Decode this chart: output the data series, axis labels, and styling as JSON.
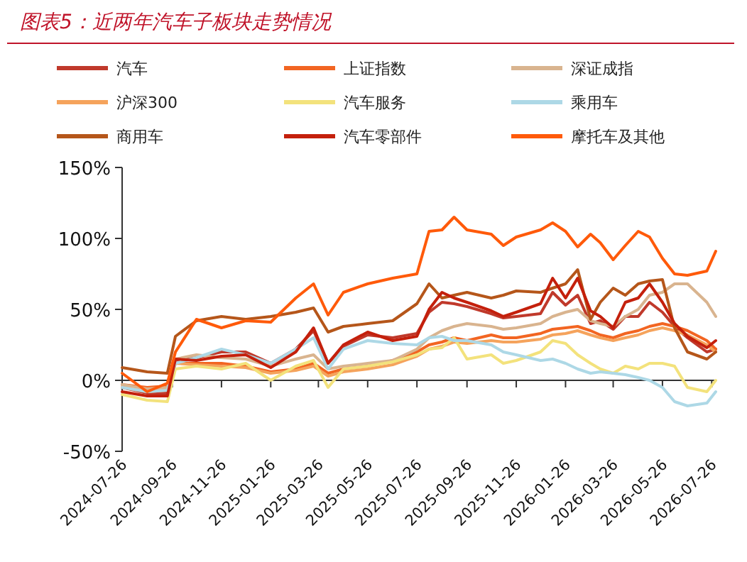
{
  "chart_data": {
    "type": "line",
    "title": "图表5：近两年汽车子板块走势情况",
    "x": [
      "2024-07-26",
      "2024-08-26",
      "2024-09-20",
      "2024-09-30",
      "2024-10-26",
      "2024-11-26",
      "2024-12-26",
      "2025-01-26",
      "2025-02-26",
      "2025-03-20",
      "2025-04-07",
      "2025-04-26",
      "2025-05-26",
      "2025-06-26",
      "2025-07-26",
      "2025-08-10",
      "2025-08-26",
      "2025-09-10",
      "2025-09-26",
      "2025-10-26",
      "2025-11-10",
      "2025-11-26",
      "2025-12-26",
      "2026-01-10",
      "2026-01-26",
      "2026-02-10",
      "2026-02-26",
      "2026-03-10",
      "2026-03-26",
      "2026-04-10",
      "2026-04-26",
      "2026-05-10",
      "2026-05-26",
      "2026-06-10",
      "2026-06-26",
      "2026-07-20",
      "2026-07-31"
    ],
    "series": [
      {
        "name": "汽车",
        "color": "#c0392b",
        "values": [
          -5,
          -9,
          -9,
          14,
          16,
          20,
          20,
          12,
          22,
          35,
          12,
          24,
          32,
          30,
          33,
          48,
          55,
          54,
          52,
          47,
          44,
          45,
          47,
          62,
          53,
          60,
          40,
          42,
          36,
          45,
          45,
          55,
          48,
          38,
          30,
          20,
          22
        ]
      },
      {
        "name": "上证指数",
        "color": "#f26522",
        "values": [
          -3,
          -5,
          -4,
          12,
          12,
          12,
          10,
          6,
          8,
          12,
          5,
          8,
          10,
          14,
          20,
          25,
          27,
          30,
          28,
          32,
          30,
          30,
          33,
          36,
          37,
          38,
          35,
          32,
          30,
          33,
          35,
          38,
          40,
          38,
          35,
          28,
          22
        ]
      },
      {
        "name": "深证成指",
        "color": "#d9b48f",
        "values": [
          -3,
          -6,
          -5,
          15,
          18,
          16,
          15,
          10,
          15,
          18,
          8,
          10,
          12,
          14,
          22,
          30,
          35,
          38,
          40,
          38,
          36,
          37,
          40,
          45,
          48,
          50,
          42,
          40,
          38,
          45,
          50,
          60,
          62,
          68,
          68,
          55,
          45
        ]
      },
      {
        "name": "沪深300",
        "color": "#f5a35c",
        "values": [
          -5,
          -8,
          -7,
          12,
          11,
          10,
          9,
          5,
          7,
          10,
          3,
          6,
          8,
          11,
          17,
          22,
          24,
          27,
          26,
          28,
          27,
          27,
          29,
          32,
          33,
          35,
          32,
          30,
          28,
          30,
          32,
          35,
          37,
          35,
          32,
          25,
          20
        ]
      },
      {
        "name": "汽车服务",
        "color": "#f3e27c",
        "values": [
          -10,
          -14,
          -15,
          8,
          10,
          8,
          12,
          0,
          10,
          14,
          -5,
          8,
          10,
          13,
          18,
          22,
          23,
          30,
          15,
          18,
          12,
          14,
          20,
          28,
          26,
          18,
          12,
          8,
          5,
          10,
          8,
          12,
          12,
          10,
          -5,
          -8,
          0
        ]
      },
      {
        "name": "乘用车",
        "color": "#add8e6",
        "values": [
          -5,
          -8,
          -7,
          12,
          16,
          22,
          18,
          12,
          22,
          30,
          8,
          22,
          28,
          26,
          25,
          30,
          31,
          28,
          28,
          25,
          20,
          18,
          14,
          15,
          12,
          8,
          5,
          6,
          5,
          4,
          2,
          0,
          -5,
          -15,
          -18,
          -16,
          -8
        ]
      },
      {
        "name": "商用车",
        "color": "#b5561a",
        "values": [
          9,
          6,
          5,
          31,
          42,
          45,
          43,
          45,
          48,
          51,
          34,
          38,
          40,
          42,
          54,
          68,
          58,
          60,
          62,
          58,
          60,
          63,
          62,
          65,
          68,
          78,
          43,
          55,
          65,
          60,
          68,
          70,
          71,
          37,
          20,
          15,
          20
        ]
      },
      {
        "name": "汽车零部件",
        "color": "#c4200c",
        "values": [
          -8,
          -11,
          -11,
          15,
          14,
          17,
          18,
          9,
          20,
          37,
          12,
          25,
          34,
          28,
          31,
          50,
          62,
          58,
          55,
          49,
          45,
          48,
          54,
          72,
          58,
          72,
          49,
          45,
          37,
          55,
          58,
          68,
          55,
          40,
          31,
          23,
          28
        ]
      },
      {
        "name": "摩托车及其他",
        "color": "#ff5a0a",
        "values": [
          5,
          -8,
          -2,
          20,
          43,
          37,
          42,
          41,
          58,
          68,
          46,
          62,
          68,
          72,
          75,
          105,
          106,
          115,
          106,
          103,
          95,
          101,
          106,
          111,
          105,
          94,
          103,
          97,
          85,
          95,
          105,
          101,
          86,
          75,
          74,
          77,
          91
        ]
      }
    ],
    "xlim": [
      "2024-07-26",
      "2026-07-31"
    ],
    "xticks": [
      "2024-07-26",
      "2024-09-26",
      "2024-11-26",
      "2025-01-26",
      "2025-03-26",
      "2025-05-26",
      "2025-07-26",
      "2025-09-26",
      "2025-11-26",
      "2026-01-26",
      "2026-03-26",
      "2026-05-26",
      "2026-07-26"
    ],
    "ylim": [
      -50,
      150
    ],
    "yticks": [
      {
        "value": -50,
        "label": "-50%"
      },
      {
        "value": 0,
        "label": "0%"
      },
      {
        "value": 50,
        "label": "50%"
      },
      {
        "value": 100,
        "label": "100%"
      },
      {
        "value": 150,
        "label": "150%"
      }
    ],
    "legend": "top",
    "marker": "none",
    "line_style": "solid"
  }
}
